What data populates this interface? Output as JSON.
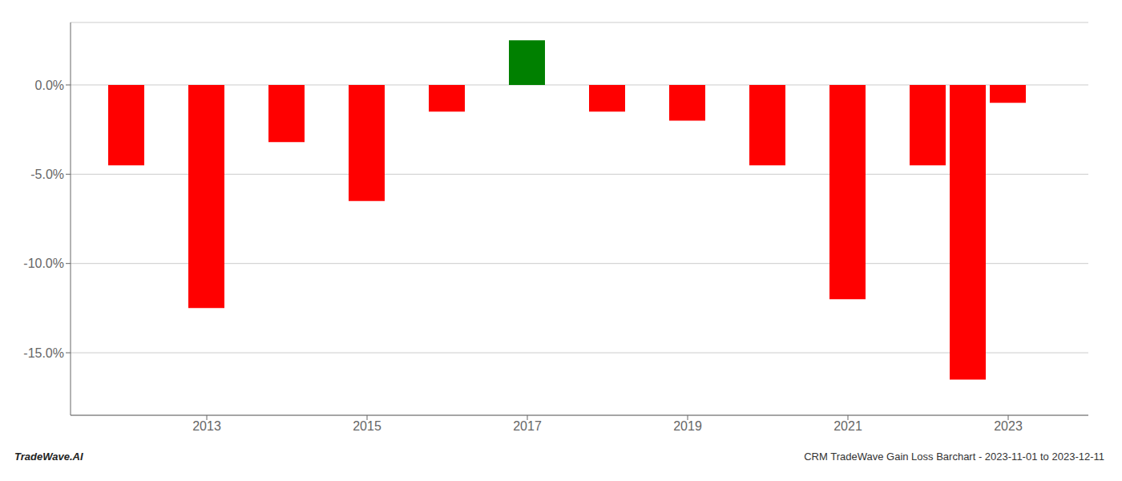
{
  "chart_data": {
    "type": "bar",
    "x": [
      2012,
      2013,
      2014,
      2015,
      2016,
      2017,
      2018,
      2019,
      2020,
      2021,
      2022,
      2022.5,
      2023
    ],
    "values": [
      -4.5,
      -12.5,
      -3.2,
      -6.5,
      -1.5,
      2.5,
      -1.5,
      -2.0,
      -4.5,
      -12.0,
      -4.5,
      -16.5,
      -1.0
    ],
    "colors": [
      "#ff0000",
      "#ff0000",
      "#ff0000",
      "#ff0000",
      "#ff0000",
      "#008000",
      "#ff0000",
      "#ff0000",
      "#ff0000",
      "#ff0000",
      "#ff0000",
      "#ff0000",
      "#ff0000"
    ],
    "xlim": [
      2011.3,
      2024.0
    ],
    "xticks": [
      2013,
      2015,
      2017,
      2019,
      2021,
      2023
    ],
    "ylim": [
      -18.5,
      3.5
    ],
    "yticks": [
      {
        "value": 0.0,
        "label": "0.0%"
      },
      {
        "value": -5.0,
        "label": "-5.0%"
      },
      {
        "value": -10.0,
        "label": "-10.0%"
      },
      {
        "value": -15.0,
        "label": "-15.0%"
      }
    ],
    "grid": true,
    "annotations": [
      "TradeWave.AI",
      "CRM TradeWave Gain Loss Barchart - 2023-11-01 to 2023-12-11"
    ]
  }
}
